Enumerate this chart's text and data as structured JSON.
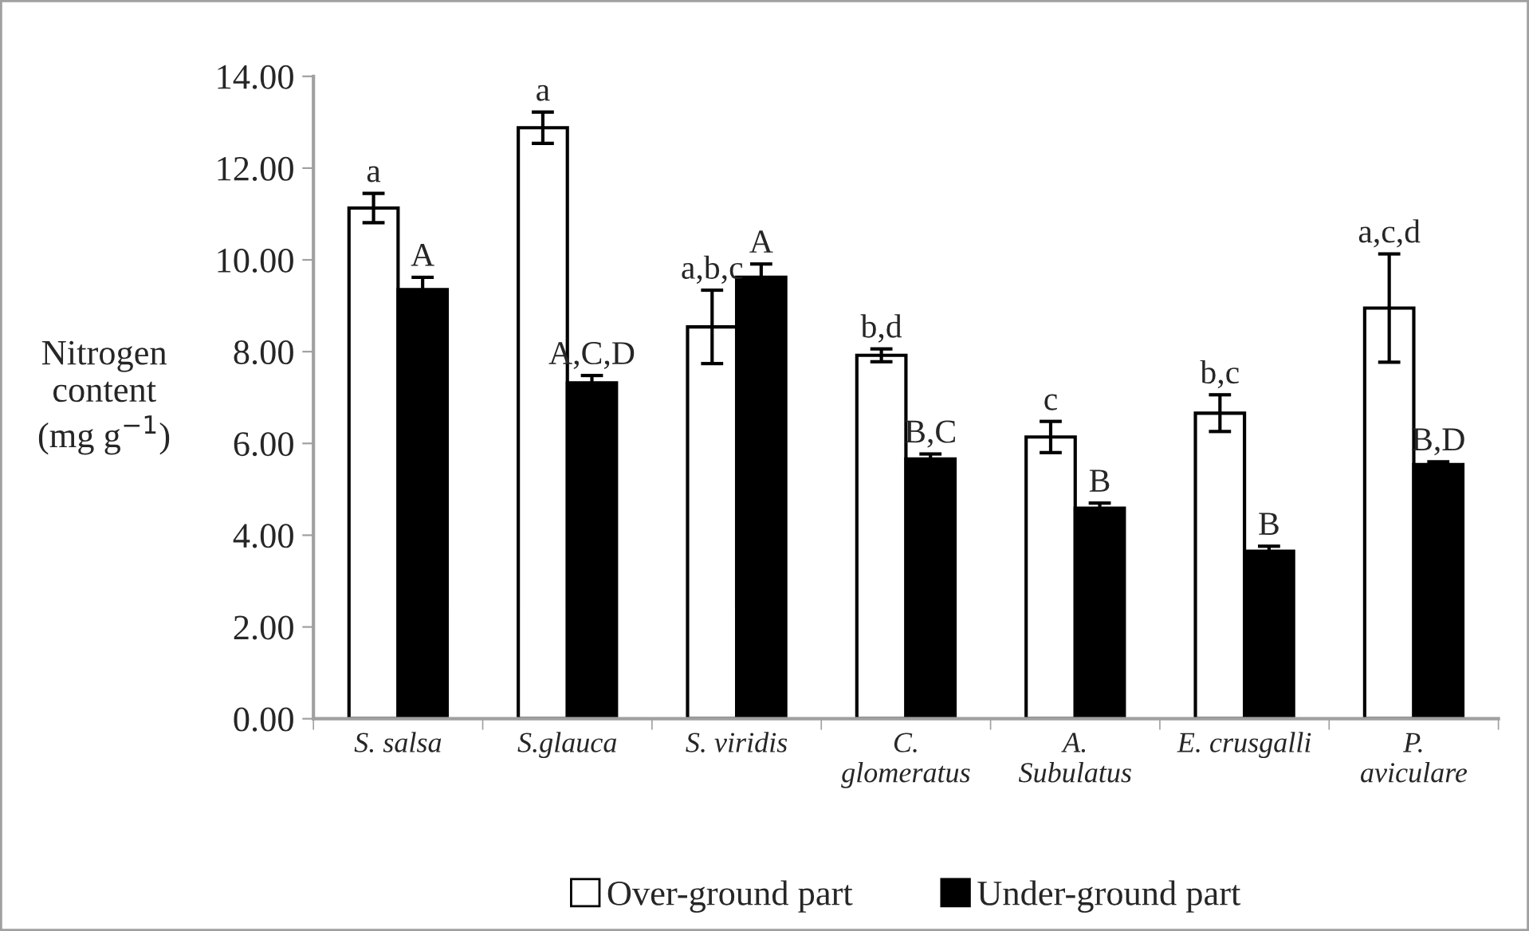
{
  "chart_data": {
    "type": "bar",
    "ylabel": "Nitrogen\ncontent\n(mg g$^{−1}$)",
    "categories": [
      "S. salsa",
      "S.glauca",
      "S. viridis",
      "C.\nglomeratus",
      "A.\nSubulatus",
      "E. crusgalli",
      "P.\naviculare"
    ],
    "series": [
      {
        "name": "Over-ground part",
        "color": "#ffffff",
        "values": [
          11.13,
          12.88,
          8.54,
          7.92,
          6.14,
          6.66,
          8.95
        ],
        "errors": [
          0.32,
          0.34,
          0.8,
          0.14,
          0.34,
          0.4,
          1.18
        ],
        "value_labels": [
          "a",
          "a",
          "a,b,c",
          "b,d",
          "c",
          "b,c",
          "a,c,d"
        ]
      },
      {
        "name": "Under-ground part",
        "color": "#000000",
        "values": [
          9.35,
          7.32,
          9.62,
          5.66,
          4.59,
          3.65,
          5.54
        ],
        "errors": [
          0.27,
          0.16,
          0.29,
          0.11,
          0.11,
          0.11,
          0.06
        ],
        "value_labels": [
          "A",
          "A,C,D",
          "A",
          "B,C",
          "B",
          "B",
          "B,D"
        ]
      }
    ],
    "ylim": [
      0,
      14
    ],
    "yticks": [
      {
        "value": 0,
        "label": "0.00"
      },
      {
        "value": 2,
        "label": "2.00"
      },
      {
        "value": 4,
        "label": "4.00"
      },
      {
        "value": 6,
        "label": "6.00"
      },
      {
        "value": 8,
        "label": "8.00"
      },
      {
        "value": 10,
        "label": "10.00"
      },
      {
        "value": 12,
        "label": "12.00"
      },
      {
        "value": 14,
        "label": "14.00"
      }
    ],
    "grid": false,
    "legend": "bottom"
  }
}
